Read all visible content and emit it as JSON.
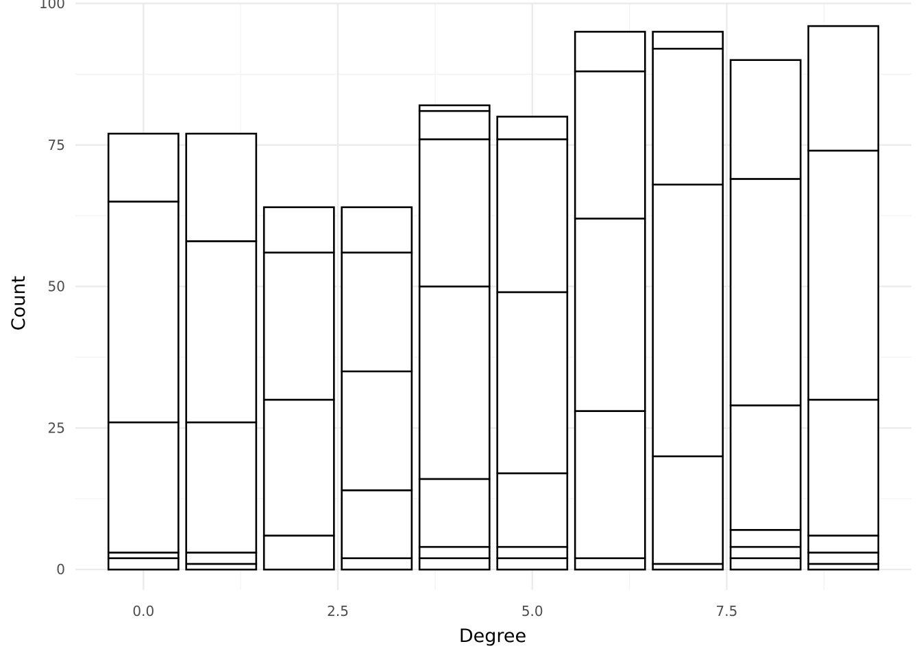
{
  "chart_data": {
    "type": "bar",
    "stacked": true,
    "xlabel": "Degree",
    "ylabel": "Count",
    "xlim": [
      -0.875,
      9.875
    ],
    "ylim": [
      -3.6,
      100
    ],
    "x_ticks": [
      {
        "value": 0,
        "label": "0.0"
      },
      {
        "value": 2.5,
        "label": "2.5"
      },
      {
        "value": 5,
        "label": "5.0"
      },
      {
        "value": 7.5,
        "label": "7.5"
      }
    ],
    "y_ticks": [
      {
        "value": 0,
        "label": "0"
      },
      {
        "value": 25,
        "label": "25"
      },
      {
        "value": 50,
        "label": "50"
      },
      {
        "value": 75,
        "label": "75"
      },
      {
        "value": 100,
        "label": "100"
      }
    ],
    "grid": true,
    "bar_width": 0.9,
    "fill_color": "#ffffff",
    "outline_color": "#000000",
    "bars": [
      {
        "x": 0,
        "boundaries": [
          0,
          2,
          3,
          26,
          65,
          77
        ]
      },
      {
        "x": 1,
        "boundaries": [
          0,
          1,
          3,
          26,
          58,
          77
        ]
      },
      {
        "x": 2,
        "boundaries": [
          0,
          6,
          30,
          56,
          64
        ]
      },
      {
        "x": 3,
        "boundaries": [
          0,
          2,
          14,
          35,
          56,
          64
        ]
      },
      {
        "x": 4,
        "boundaries": [
          0,
          2,
          4,
          16,
          50,
          76,
          81,
          82
        ]
      },
      {
        "x": 5,
        "boundaries": [
          0,
          2,
          4,
          17,
          49,
          76,
          80
        ]
      },
      {
        "x": 6,
        "boundaries": [
          0,
          2,
          28,
          62,
          88,
          95
        ]
      },
      {
        "x": 7,
        "boundaries": [
          0,
          1,
          20,
          68,
          92,
          95
        ]
      },
      {
        "x": 8,
        "boundaries": [
          0,
          2,
          4,
          7,
          29,
          69,
          90
        ]
      },
      {
        "x": 9,
        "boundaries": [
          0,
          1,
          3,
          6,
          30,
          74,
          96
        ]
      }
    ]
  }
}
